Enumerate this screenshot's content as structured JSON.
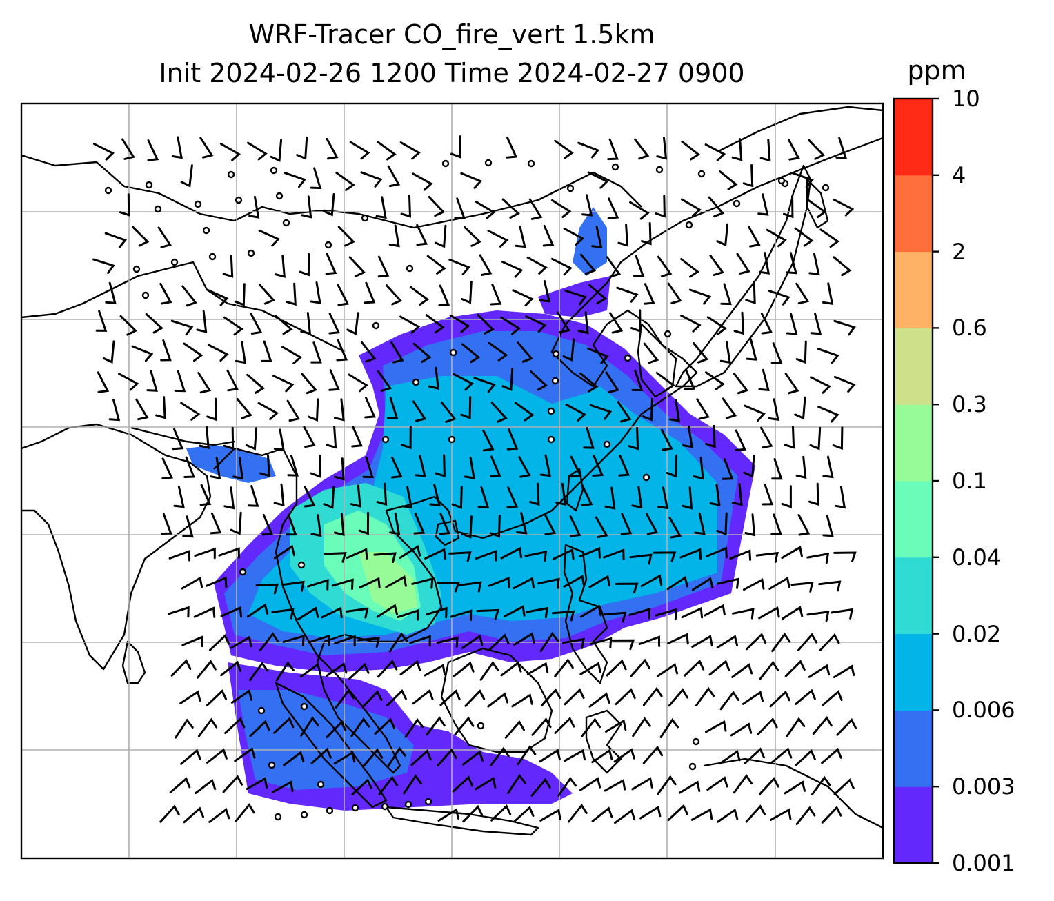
{
  "title": {
    "line1": "WRF-Tracer CO_fire_vert 1.5km",
    "line2": "Init 2024-02-26 1200 Time 2024-02-27 0900"
  },
  "colorbar": {
    "unit": "ppm",
    "levels": [
      "0.001",
      "0.003",
      "0.006",
      "0.02",
      "0.04",
      "0.1",
      "0.3",
      "0.6",
      "2",
      "4",
      "10"
    ],
    "colors": [
      "#6328fb",
      "#3371f2",
      "#03b4e8",
      "#2fdbd3",
      "#6afcb9",
      "#97fb97",
      "#cfe08a",
      "#feb265",
      "#fe6f3b",
      "#ff2b17"
    ]
  },
  "map": {
    "background": "#ffffff",
    "coastline_color": "#000000",
    "gridline_color": "#b0b0b0",
    "barb_color": "#000000"
  }
}
